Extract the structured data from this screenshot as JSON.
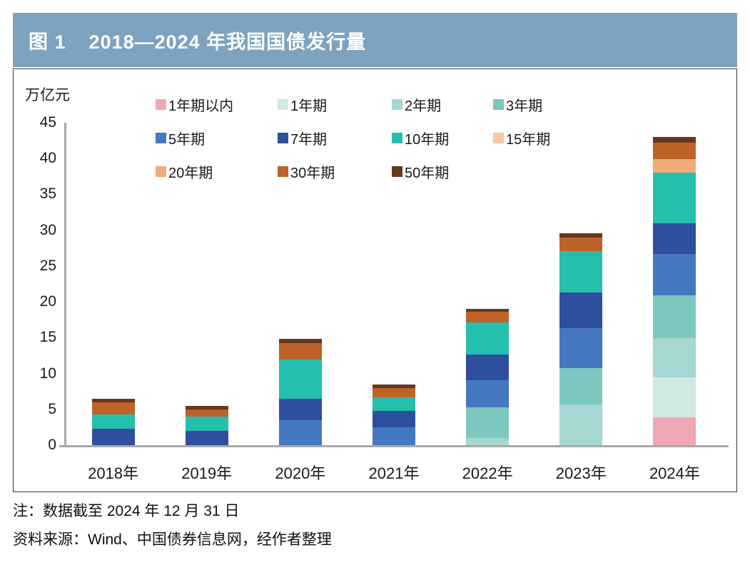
{
  "figure": {
    "title_prefix": "图 1",
    "title": "2018—2024 年我国国债发行量",
    "unit_label": "万亿元",
    "note_1": "注：数据截至 2024 年 12 月 31 日",
    "note_2": "资料来源：Wind、中国债券信息网，经作者整理"
  },
  "colors": {
    "title_bar_bg": "#7da3c0",
    "title_text": "#ffffff",
    "axis_line": "#a9a9a9",
    "box_border": "#3a3a3a"
  },
  "chart_data": {
    "type": "bar",
    "stacked": true,
    "title": "2018—2024 年我国国债发行量",
    "xlabel": "",
    "ylabel": "万亿元",
    "ylim": [
      0,
      45
    ],
    "yticks": [
      0,
      5,
      10,
      15,
      20,
      25,
      30,
      35,
      40,
      45
    ],
    "grid": false,
    "legend_position": "top",
    "categories": [
      "2018年",
      "2019年",
      "2020年",
      "2021年",
      "2022年",
      "2023年",
      "2024年"
    ],
    "series": [
      {
        "name": "1年期以内",
        "color": "#efa8b2",
        "values": [
          0,
          0,
          0,
          0,
          0,
          0,
          3.9
        ]
      },
      {
        "name": "1年期",
        "color": "#cfe9e3",
        "values": [
          0,
          0,
          0,
          0,
          0,
          0,
          5.6
        ]
      },
      {
        "name": "2年期",
        "color": "#a5d8d2",
        "values": [
          0,
          0,
          0,
          0,
          1.0,
          5.7,
          5.4
        ]
      },
      {
        "name": "3年期",
        "color": "#7dc7c1",
        "values": [
          0,
          0,
          0,
          0,
          4.3,
          5.0,
          6.0
        ]
      },
      {
        "name": "5年期",
        "color": "#4478c0",
        "values": [
          0,
          0,
          3.5,
          2.5,
          3.8,
          5.6,
          5.8
        ]
      },
      {
        "name": "7年期",
        "color": "#2d4f9e",
        "values": [
          2.3,
          2.0,
          3.0,
          2.3,
          3.5,
          5.0,
          4.3
        ]
      },
      {
        "name": "10年期",
        "color": "#25bfae",
        "values": [
          2.0,
          2.0,
          5.4,
          1.9,
          4.5,
          5.8,
          7.0
        ]
      },
      {
        "name": "15年期",
        "color": "#f5c9a5",
        "values": [
          0,
          0,
          0,
          0,
          0,
          0,
          0
        ]
      },
      {
        "name": "20年期",
        "color": "#f0ab79",
        "values": [
          0,
          0,
          0,
          0,
          0,
          0,
          1.9
        ]
      },
      {
        "name": "30年期",
        "color": "#bf6229",
        "values": [
          1.7,
          1.0,
          2.3,
          1.3,
          1.5,
          1.9,
          2.3
        ]
      },
      {
        "name": "50年期",
        "color": "#66381f",
        "values": [
          0.5,
          0.5,
          0.6,
          0.5,
          0.4,
          0.6,
          0.8
        ]
      }
    ],
    "totals": [
      6.5,
      5.5,
      14.8,
      8.5,
      19.0,
      29.6,
      43.0
    ]
  }
}
